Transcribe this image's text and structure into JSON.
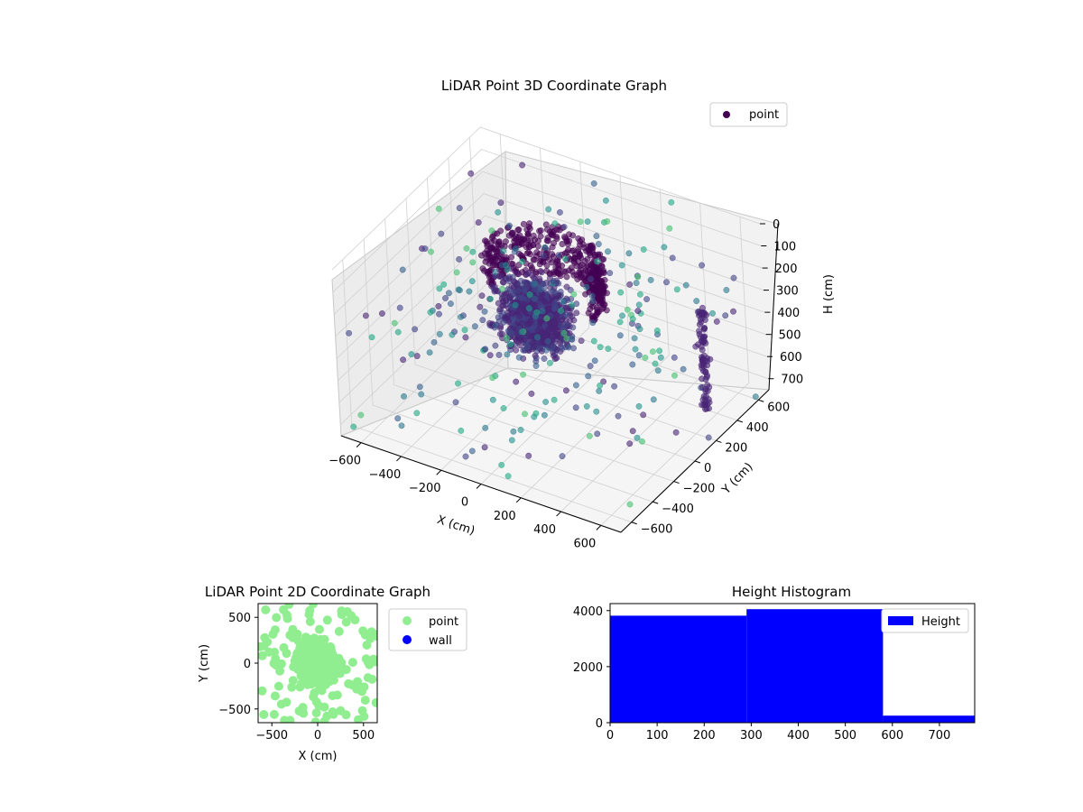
{
  "chart_data": [
    {
      "type": "scatter",
      "title": "LiDAR Point 3D Coordinate Graph",
      "xlabel": "X (cm)",
      "ylabel": "Y (cm)",
      "zlabel": "H (cm)",
      "x_ticks": [
        "−600",
        "−400",
        "−200",
        "0",
        "200",
        "400",
        "600"
      ],
      "y_ticks": [
        "−600",
        "−400",
        "−200",
        "0",
        "200",
        "400",
        "600"
      ],
      "z_ticks": [
        "0",
        "100",
        "200",
        "300",
        "400",
        "500",
        "600",
        "700"
      ],
      "xlim": [
        -700,
        700
      ],
      "ylim": [
        -700,
        700
      ],
      "zlim": [
        750,
        0
      ],
      "colormap": "viridis",
      "legend": {
        "position": "top-right",
        "entries": [
          {
            "label": "point",
            "color": "#440154"
          }
        ]
      },
      "series": [
        {
          "name": "point",
          "description_points": [
            {
              "x": -120,
              "y": 80,
              "h": 120,
              "count": "dense ring"
            },
            {
              "x": -60,
              "y": -40,
              "h": 300,
              "count": "dense cluster"
            }
          ]
        }
      ]
    },
    {
      "type": "scatter",
      "title": "LiDAR Point 2D Coordinate Graph",
      "xlabel": "X (cm)",
      "ylabel": "Y (cm)",
      "x_ticks": [
        "−500",
        "0",
        "500"
      ],
      "y_ticks": [
        "500",
        "0",
        "−500"
      ],
      "xlim": [
        -650,
        650
      ],
      "ylim": [
        -650,
        650
      ],
      "legend": {
        "position": "right",
        "entries": [
          {
            "label": "point",
            "color": "#90ee90"
          },
          {
            "label": "wall",
            "color": "#0000ff"
          }
        ]
      }
    },
    {
      "type": "bar",
      "title": "Height Histogram",
      "x_ticks": [
        "0",
        "100",
        "200",
        "300",
        "400",
        "500",
        "600",
        "700"
      ],
      "y_ticks": [
        "0",
        "2000",
        "4000"
      ],
      "xlim": [
        0,
        775
      ],
      "ylim": [
        0,
        4250
      ],
      "bins": [
        {
          "from": 0,
          "to": 290,
          "value": 3820
        },
        {
          "from": 290,
          "to": 580,
          "value": 4050
        },
        {
          "from": 580,
          "to": 775,
          "value": 250
        }
      ],
      "color": "#0000ff",
      "legend": {
        "position": "top-right",
        "entries": [
          {
            "label": "Height",
            "color": "#0000ff"
          }
        ]
      }
    }
  ]
}
